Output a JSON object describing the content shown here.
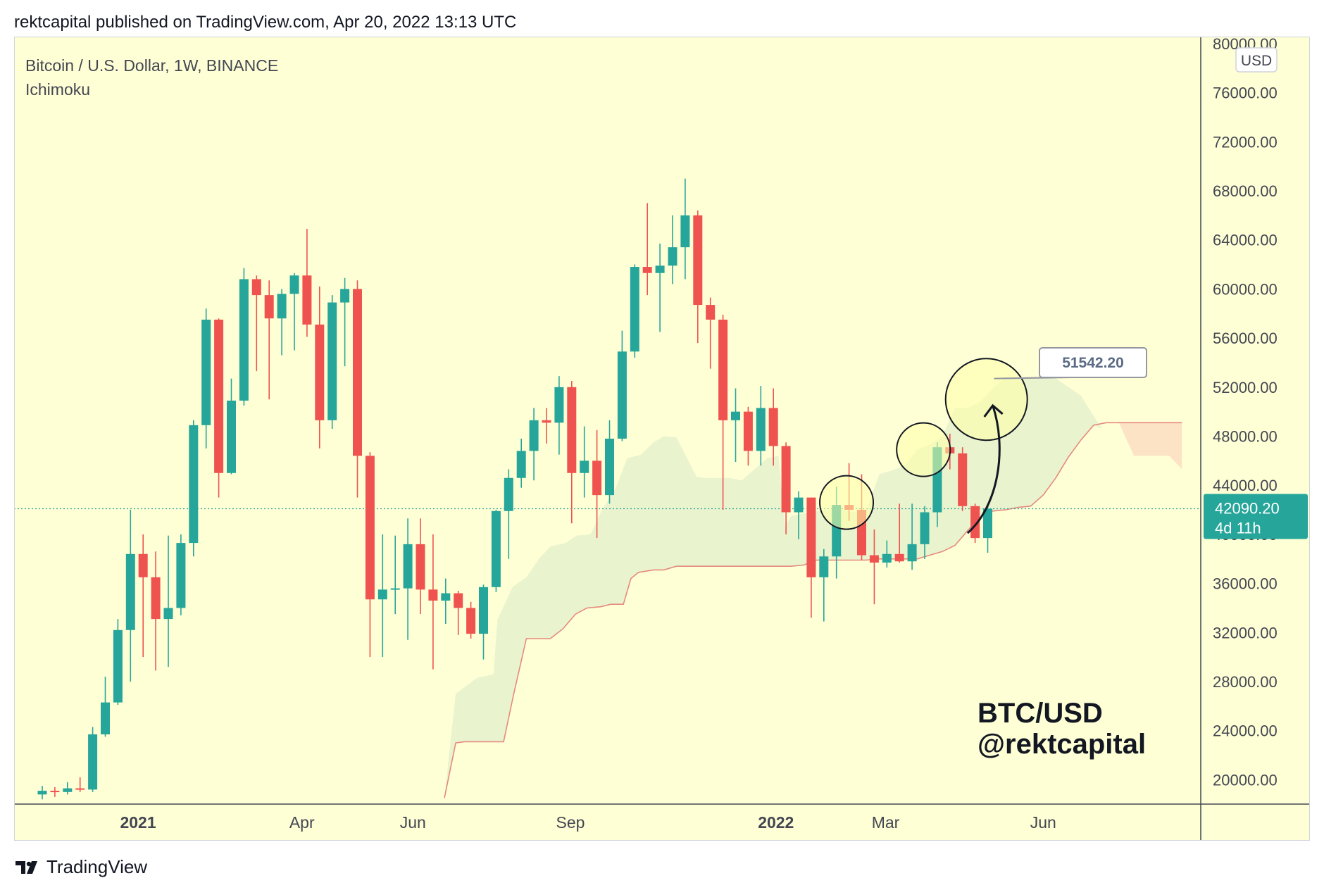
{
  "header": {
    "title": "rektcapital published on TradingView.com, Apr 20, 2022 13:13 UTC"
  },
  "legend": {
    "symbol": "Bitcoin / U.S. Dollar, 1W, BINANCE",
    "indicator": "Ichimoku"
  },
  "footer": {
    "brand": "TradingView",
    "logo_icon": "tradingview-logo-icon"
  },
  "colors": {
    "background": "#ffffd6",
    "up": "#26a69a",
    "down": "#ef5350",
    "cloud": "#e8f2cc",
    "cloud_bear": "#fde3c6",
    "span_b": "#e58a80",
    "price_line": "#26a69a"
  },
  "chart_data": {
    "type": "candlestick",
    "interval": "1W",
    "currency": "USD",
    "y_ticks": [
      "20000.00",
      "24000.00",
      "28000.00",
      "32000.00",
      "36000.00",
      "40000.00",
      "44000.00",
      "48000.00",
      "52000.00",
      "56000.00",
      "60000.00",
      "64000.00",
      "68000.00",
      "72000.00",
      "76000.00",
      "80000.00"
    ],
    "ylim": [
      18500,
      81000
    ],
    "x_ticks": [
      {
        "label": "2021",
        "index": 7.6,
        "bold": true
      },
      {
        "label": "Apr",
        "index": 20.6,
        "bold": false
      },
      {
        "label": "Jun",
        "index": 29.4,
        "bold": false
      },
      {
        "label": "Sep",
        "index": 41.9,
        "bold": false
      },
      {
        "label": "2022",
        "index": 58.2,
        "bold": true
      },
      {
        "label": "Mar",
        "index": 66.9,
        "bold": false
      },
      {
        "label": "Jun",
        "index": 79.4,
        "bold": false
      }
    ],
    "candles": [
      {
        "o": 18800,
        "h": 19500,
        "l": 18400,
        "c": 19100
      },
      {
        "o": 19100,
        "h": 19400,
        "l": 18600,
        "c": 19000
      },
      {
        "o": 19000,
        "h": 19800,
        "l": 18800,
        "c": 19300
      },
      {
        "o": 19300,
        "h": 20200,
        "l": 19000,
        "c": 19200
      },
      {
        "o": 19200,
        "h": 24300,
        "l": 19000,
        "c": 23700
      },
      {
        "o": 23700,
        "h": 28400,
        "l": 23500,
        "c": 26300
      },
      {
        "o": 26300,
        "h": 33100,
        "l": 26100,
        "c": 32200
      },
      {
        "o": 32200,
        "h": 42000,
        "l": 28000,
        "c": 38400
      },
      {
        "o": 38400,
        "h": 40000,
        "l": 30000,
        "c": 36500
      },
      {
        "o": 36500,
        "h": 38600,
        "l": 28900,
        "c": 33100
      },
      {
        "o": 33100,
        "h": 39900,
        "l": 29200,
        "c": 34000
      },
      {
        "o": 34000,
        "h": 40000,
        "l": 33400,
        "c": 39300
      },
      {
        "o": 39300,
        "h": 49300,
        "l": 38200,
        "c": 48900
      },
      {
        "o": 48900,
        "h": 58400,
        "l": 47000,
        "c": 57500
      },
      {
        "o": 57500,
        "h": 57600,
        "l": 43000,
        "c": 45000
      },
      {
        "o": 45000,
        "h": 52700,
        "l": 44900,
        "c": 50900
      },
      {
        "o": 50900,
        "h": 61700,
        "l": 50500,
        "c": 60800
      },
      {
        "o": 60800,
        "h": 61100,
        "l": 53300,
        "c": 59500
      },
      {
        "o": 59500,
        "h": 60700,
        "l": 51000,
        "c": 57600
      },
      {
        "o": 57600,
        "h": 60000,
        "l": 54600,
        "c": 59600
      },
      {
        "o": 59600,
        "h": 61300,
        "l": 55000,
        "c": 61100
      },
      {
        "o": 61100,
        "h": 64900,
        "l": 56100,
        "c": 57100
      },
      {
        "o": 57100,
        "h": 60200,
        "l": 47000,
        "c": 49300
      },
      {
        "o": 49300,
        "h": 59500,
        "l": 48600,
        "c": 58900
      },
      {
        "o": 58900,
        "h": 60900,
        "l": 53700,
        "c": 60000
      },
      {
        "o": 60000,
        "h": 60700,
        "l": 43000,
        "c": 46400
      },
      {
        "o": 46400,
        "h": 46700,
        "l": 30000,
        "c": 34700
      },
      {
        "o": 34700,
        "h": 40000,
        "l": 30000,
        "c": 35500
      },
      {
        "o": 35500,
        "h": 39900,
        "l": 33500,
        "c": 35600
      },
      {
        "o": 35600,
        "h": 41300,
        "l": 31400,
        "c": 39200
      },
      {
        "o": 39200,
        "h": 41300,
        "l": 33500,
        "c": 35500
      },
      {
        "o": 35500,
        "h": 40000,
        "l": 29000,
        "c": 34600
      },
      {
        "o": 34600,
        "h": 36400,
        "l": 32700,
        "c": 35200
      },
      {
        "o": 35200,
        "h": 35400,
        "l": 31800,
        "c": 34000
      },
      {
        "o": 34000,
        "h": 34500,
        "l": 31500,
        "c": 31900
      },
      {
        "o": 31900,
        "h": 35900,
        "l": 29800,
        "c": 35700
      },
      {
        "o": 35700,
        "h": 42000,
        "l": 35300,
        "c": 41900
      },
      {
        "o": 41900,
        "h": 45300,
        "l": 38000,
        "c": 44600
      },
      {
        "o": 44600,
        "h": 47800,
        "l": 43800,
        "c": 46800
      },
      {
        "o": 46800,
        "h": 50300,
        "l": 44400,
        "c": 49300
      },
      {
        "o": 49300,
        "h": 50300,
        "l": 47400,
        "c": 49100
      },
      {
        "o": 49100,
        "h": 52900,
        "l": 46500,
        "c": 52000
      },
      {
        "o": 52000,
        "h": 52500,
        "l": 40900,
        "c": 45000
      },
      {
        "o": 45000,
        "h": 48800,
        "l": 43000,
        "c": 46000
      },
      {
        "o": 46000,
        "h": 48500,
        "l": 39700,
        "c": 43200
      },
      {
        "o": 43200,
        "h": 49300,
        "l": 42500,
        "c": 47800
      },
      {
        "o": 47800,
        "h": 56600,
        "l": 47600,
        "c": 54900
      },
      {
        "o": 54900,
        "h": 62000,
        "l": 54400,
        "c": 61800
      },
      {
        "o": 61800,
        "h": 67000,
        "l": 59500,
        "c": 61300
      },
      {
        "o": 61300,
        "h": 63700,
        "l": 56500,
        "c": 61900
      },
      {
        "o": 61900,
        "h": 66000,
        "l": 60400,
        "c": 63400
      },
      {
        "o": 63400,
        "h": 69000,
        "l": 60800,
        "c": 66000
      },
      {
        "o": 66000,
        "h": 66400,
        "l": 55600,
        "c": 58700
      },
      {
        "o": 58700,
        "h": 59300,
        "l": 53500,
        "c": 57500
      },
      {
        "o": 57500,
        "h": 57900,
        "l": 42000,
        "c": 49300
      },
      {
        "o": 49300,
        "h": 51900,
        "l": 45900,
        "c": 50000
      },
      {
        "o": 50000,
        "h": 50400,
        "l": 45600,
        "c": 46800
      },
      {
        "o": 46800,
        "h": 52100,
        "l": 45600,
        "c": 50300
      },
      {
        "o": 50300,
        "h": 51900,
        "l": 45600,
        "c": 47200
      },
      {
        "o": 47200,
        "h": 47500,
        "l": 40000,
        "c": 41800
      },
      {
        "o": 41800,
        "h": 43500,
        "l": 39600,
        "c": 43000
      },
      {
        "o": 43000,
        "h": 43000,
        "l": 33200,
        "c": 36500
      },
      {
        "o": 36500,
        "h": 38800,
        "l": 32900,
        "c": 38200
      },
      {
        "o": 38200,
        "h": 43900,
        "l": 36400,
        "c": 42400
      },
      {
        "o": 42400,
        "h": 45800,
        "l": 41100,
        "c": 42000
      },
      {
        "o": 42000,
        "h": 44900,
        "l": 37900,
        "c": 38300
      },
      {
        "o": 38300,
        "h": 40400,
        "l": 34300,
        "c": 37700
      },
      {
        "o": 37700,
        "h": 39500,
        "l": 37300,
        "c": 38400
      },
      {
        "o": 38400,
        "h": 42500,
        "l": 37700,
        "c": 37800
      },
      {
        "o": 37800,
        "h": 42500,
        "l": 37100,
        "c": 39200
      },
      {
        "o": 39200,
        "h": 42300,
        "l": 38000,
        "c": 41800
      },
      {
        "o": 41800,
        "h": 47500,
        "l": 40600,
        "c": 47100
      },
      {
        "o": 47100,
        "h": 48200,
        "l": 45300,
        "c": 46600
      },
      {
        "o": 46600,
        "h": 47100,
        "l": 41900,
        "c": 42300
      },
      {
        "o": 42300,
        "h": 42500,
        "l": 39300,
        "c": 39700
      },
      {
        "o": 39700,
        "h": 42400,
        "l": 38500,
        "c": 42090.2
      }
    ],
    "cloud_span_a": [
      [
        31.9,
        18500
      ],
      [
        32.8,
        27000
      ],
      [
        34.5,
        28300
      ],
      [
        35.8,
        28600
      ],
      [
        36.1,
        33000
      ],
      [
        37.3,
        35700
      ],
      [
        38.4,
        36500
      ],
      [
        39.4,
        38000
      ],
      [
        40.3,
        39000
      ],
      [
        41.5,
        39300
      ],
      [
        42.4,
        39900
      ],
      [
        43.5,
        40000
      ],
      [
        44.4,
        42000
      ],
      [
        45.5,
        43800
      ],
      [
        46.4,
        46200
      ],
      [
        47.5,
        46500
      ],
      [
        48.5,
        47500
      ],
      [
        49.3,
        48000
      ],
      [
        50.3,
        47900
      ],
      [
        51.3,
        45900
      ],
      [
        51.9,
        44700
      ],
      [
        52.5,
        44600
      ],
      [
        54.5,
        44600
      ],
      [
        55.5,
        44400
      ],
      [
        56.5,
        45300
      ],
      [
        57.5,
        46200
      ],
      [
        58.4,
        46400
      ],
      [
        58.9,
        40600
      ],
      [
        59.4,
        41500
      ],
      [
        60.4,
        41700
      ],
      [
        61.4,
        41900
      ],
      [
        62.4,
        42000
      ],
      [
        63.4,
        42000
      ],
      [
        64.4,
        41800
      ],
      [
        65.3,
        41800
      ],
      [
        66.4,
        44900
      ],
      [
        67.4,
        45200
      ],
      [
        68.4,
        45600
      ],
      [
        69.4,
        46900
      ],
      [
        70.4,
        47300
      ],
      [
        71.4,
        48000
      ],
      [
        72.4,
        50300
      ],
      [
        73.4,
        50300
      ],
      [
        74.4,
        50800
      ],
      [
        75.4,
        51900
      ],
      [
        76.4,
        52800
      ],
      [
        77.4,
        52700
      ],
      [
        78.4,
        52800
      ],
      [
        79.4,
        52800
      ],
      [
        80.4,
        52700
      ],
      [
        81.4,
        52000
      ],
      [
        82.4,
        51300
      ],
      [
        83.3,
        49800
      ],
      [
        84.1,
        48600
      ]
    ],
    "cloud_span_b": [
      [
        31.9,
        18500
      ],
      [
        32.8,
        23000
      ],
      [
        33.5,
        23100
      ],
      [
        34.4,
        23100
      ],
      [
        34.8,
        23100
      ],
      [
        35.8,
        23100
      ],
      [
        36.6,
        23100
      ],
      [
        37.4,
        27000
      ],
      [
        38.4,
        31500
      ],
      [
        39.4,
        31500
      ],
      [
        40.3,
        31500
      ],
      [
        41.3,
        32300
      ],
      [
        42.3,
        33500
      ],
      [
        43.2,
        34000
      ],
      [
        44.3,
        34100
      ],
      [
        45.1,
        34300
      ],
      [
        46.1,
        34300
      ],
      [
        46.7,
        36400
      ],
      [
        47.3,
        36900
      ],
      [
        48.5,
        37100
      ],
      [
        49.3,
        37100
      ],
      [
        50.3,
        37400
      ],
      [
        51.3,
        37400
      ],
      [
        52.3,
        37400
      ],
      [
        53.3,
        37400
      ],
      [
        54.3,
        37400
      ],
      [
        55.3,
        37400
      ],
      [
        56.3,
        37400
      ],
      [
        57.4,
        37400
      ],
      [
        58.4,
        37400
      ],
      [
        59.4,
        37400
      ],
      [
        60.4,
        37500
      ],
      [
        61.4,
        37900
      ],
      [
        62.4,
        37900
      ],
      [
        63.4,
        37900
      ],
      [
        64.4,
        37900
      ],
      [
        65.3,
        37900
      ],
      [
        66.4,
        38000
      ],
      [
        67.4,
        38000
      ],
      [
        68.4,
        38000
      ],
      [
        69.4,
        38000
      ],
      [
        70.4,
        38300
      ],
      [
        71.4,
        38600
      ],
      [
        72.4,
        39100
      ],
      [
        73.4,
        40300
      ],
      [
        74.4,
        41400
      ],
      [
        75.4,
        41900
      ],
      [
        76.4,
        42000
      ],
      [
        77.4,
        42200
      ],
      [
        78.4,
        42300
      ],
      [
        79.4,
        43200
      ],
      [
        80.4,
        44600
      ],
      [
        81.4,
        46300
      ],
      [
        82.4,
        47700
      ],
      [
        83.4,
        48900
      ],
      [
        84.4,
        49100
      ],
      [
        85.4,
        49100
      ],
      [
        86.4,
        49100
      ],
      [
        87.4,
        49100
      ],
      [
        88.4,
        49100
      ],
      [
        89.4,
        49100
      ],
      [
        90.4,
        49100
      ]
    ],
    "cloud_bear_top": [
      [
        84.1,
        49100
      ],
      [
        85.4,
        49100
      ],
      [
        86.6,
        46400
      ],
      [
        88.5,
        46400
      ],
      [
        89.4,
        46400
      ],
      [
        90.4,
        45300
      ]
    ],
    "last_price": {
      "value": "42090.20",
      "countdown": "4d 11h"
    },
    "target_label": {
      "value": "51542.20",
      "price": 51542.2
    },
    "circles": [
      {
        "index": 63.8,
        "price": 42600,
        "r": 38
      },
      {
        "index": 69.9,
        "price": 46900,
        "r": 38
      },
      {
        "index": 74.9,
        "price": 51000,
        "r": 58
      }
    ],
    "arrow": {
      "from": [
        73.4,
        40100
      ],
      "to": [
        75.4,
        50500
      ]
    },
    "watermark": [
      "BTC/USD",
      "@rektcapital"
    ]
  }
}
